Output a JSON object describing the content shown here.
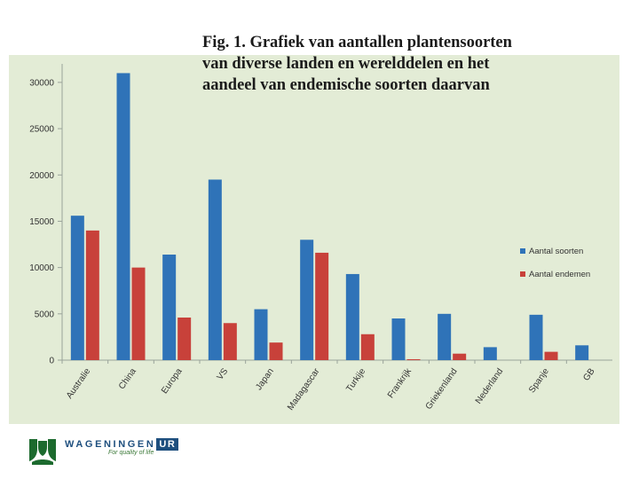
{
  "figure": {
    "title_lines": [
      "Fig. 1. Grafiek van aantallen plantensoorten",
      "van diverse landen en werelddelen en het",
      "aandeel van endemische soorten daarvan"
    ]
  },
  "chart_data": {
    "type": "bar",
    "categories": [
      "Australie",
      "China",
      "Europa",
      "VS",
      "Japan",
      "Madagascar",
      "Turkije",
      "Frankrijk",
      "Griekenland",
      "Nederland",
      "Spanje",
      "GB"
    ],
    "series": [
      {
        "name": "Aantal soorten",
        "color": "#2f73b8",
        "values": [
          15600,
          31000,
          11400,
          19500,
          5500,
          13000,
          9300,
          4500,
          5000,
          1400,
          4900,
          1600
        ]
      },
      {
        "name": "Aantal endemen",
        "color": "#c8413a",
        "values": [
          14000,
          10000,
          4600,
          4000,
          1900,
          11600,
          2800,
          100,
          700,
          0,
          900,
          0
        ]
      }
    ],
    "ylim": [
      0,
      32000
    ],
    "yticks": [
      0,
      5000,
      10000,
      15000,
      20000,
      25000,
      30000
    ],
    "title": "Fig. 1. Grafiek van aantallen plantensoorten van diverse landen en werelddelen en het aandeel van endemische soorten daarvan",
    "xlabel": "",
    "ylabel": "",
    "grid": false,
    "legend_position": "right"
  },
  "logo": {
    "word": "WAGENINGEN",
    "ur": "UR",
    "tagline": "For quality of life",
    "color": "#1e4f7e",
    "mark_color": "#1c6a2e"
  }
}
